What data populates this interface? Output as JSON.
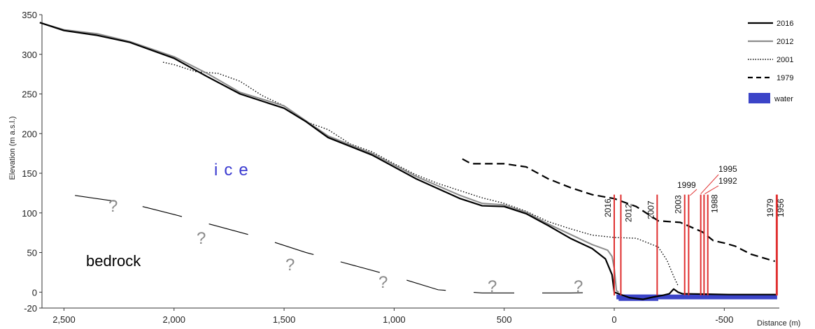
{
  "chart_data": {
    "type": "line",
    "title": "",
    "xlabel": "Distance (m)",
    "ylabel": "Elevation (m a.s.l.)",
    "xlim": [
      2600,
      -750
    ],
    "ylim": [
      -20,
      350
    ],
    "x_ticks": [
      {
        "value": 2500,
        "label": "2,500"
      },
      {
        "value": 2000,
        "label": "2,000"
      },
      {
        "value": 1500,
        "label": "1,500"
      },
      {
        "value": 1000,
        "label": "1,000"
      },
      {
        "value": 500,
        "label": "500"
      },
      {
        "value": 0,
        "label": "0"
      },
      {
        "value": -500,
        "label": "-500"
      }
    ],
    "y_ticks": [
      {
        "value": 350,
        "label": "350"
      },
      {
        "value": 300,
        "label": "300"
      },
      {
        "value": 250,
        "label": "250"
      },
      {
        "value": 200,
        "label": "200"
      },
      {
        "value": 150,
        "label": "150"
      },
      {
        "value": 100,
        "label": "100"
      },
      {
        "value": 50,
        "label": "50"
      },
      {
        "value": 0,
        "label": "0"
      },
      {
        "value": -20,
        "label": "-20"
      }
    ],
    "legend_position": "top-right",
    "legend": [
      {
        "label": "2016",
        "style": "solid",
        "color": "#000000"
      },
      {
        "label": "2012",
        "style": "solid",
        "color": "#8c8c8c"
      },
      {
        "label": "2001",
        "style": "dotted",
        "color": "#000000"
      },
      {
        "label": "1979",
        "style": "dashed",
        "color": "#000000"
      },
      {
        "label": "water",
        "style": "box",
        "color": "#3b44c8"
      }
    ],
    "series": [
      {
        "name": "2016",
        "style": "solid",
        "color": "#000000",
        "points": [
          [
            2610,
            340
          ],
          [
            2500,
            330
          ],
          [
            2350,
            324
          ],
          [
            2200,
            315
          ],
          [
            2000,
            295
          ],
          [
            1850,
            272
          ],
          [
            1700,
            250
          ],
          [
            1500,
            232
          ],
          [
            1400,
            215
          ],
          [
            1300,
            195
          ],
          [
            1100,
            173
          ],
          [
            900,
            143
          ],
          [
            700,
            118
          ],
          [
            600,
            109
          ],
          [
            500,
            108
          ],
          [
            400,
            99
          ],
          [
            300,
            84
          ],
          [
            200,
            68
          ],
          [
            100,
            55
          ],
          [
            40,
            42
          ],
          [
            10,
            22
          ],
          [
            0,
            0
          ],
          [
            -20,
            -2
          ],
          [
            -70,
            -7
          ],
          [
            -130,
            -9
          ],
          [
            -180,
            -6
          ],
          [
            -220,
            -4
          ],
          [
            -250,
            -2
          ],
          [
            -270,
            4
          ],
          [
            -290,
            0
          ],
          [
            -310,
            -2
          ],
          [
            -520,
            -3
          ],
          [
            -740,
            -3
          ]
        ]
      },
      {
        "name": "2012",
        "style": "solid",
        "color": "#8c8c8c",
        "points": [
          [
            2610,
            340
          ],
          [
            2500,
            331
          ],
          [
            2350,
            326
          ],
          [
            2200,
            316
          ],
          [
            2000,
            297
          ],
          [
            1850,
            276
          ],
          [
            1700,
            252
          ],
          [
            1500,
            235
          ],
          [
            1400,
            216
          ],
          [
            1300,
            197
          ],
          [
            1100,
            175
          ],
          [
            900,
            146
          ],
          [
            700,
            122
          ],
          [
            600,
            112
          ],
          [
            500,
            110
          ],
          [
            400,
            101
          ],
          [
            300,
            86
          ],
          [
            200,
            73
          ],
          [
            100,
            60
          ],
          [
            30,
            53
          ],
          [
            10,
            45
          ],
          [
            0,
            30
          ],
          [
            -10,
            2
          ],
          [
            -20,
            0
          ]
        ]
      },
      {
        "name": "2001",
        "style": "dotted",
        "color": "#000000",
        "points": [
          [
            2050,
            290
          ],
          [
            2000,
            287
          ],
          [
            1900,
            278
          ],
          [
            1800,
            276
          ],
          [
            1700,
            266
          ],
          [
            1600,
            248
          ],
          [
            1500,
            235
          ],
          [
            1400,
            215
          ],
          [
            1300,
            205
          ],
          [
            1200,
            187
          ],
          [
            1100,
            177
          ],
          [
            1000,
            162
          ],
          [
            900,
            148
          ],
          [
            800,
            137
          ],
          [
            700,
            128
          ],
          [
            600,
            119
          ],
          [
            500,
            112
          ],
          [
            400,
            102
          ],
          [
            300,
            89
          ],
          [
            200,
            80
          ],
          [
            100,
            72
          ],
          [
            0,
            69
          ],
          [
            -100,
            68
          ],
          [
            -200,
            57
          ],
          [
            -240,
            40
          ],
          [
            -270,
            20
          ],
          [
            -290,
            8
          ]
        ]
      },
      {
        "name": "1979",
        "style": "dashed",
        "color": "#000000",
        "points": [
          [
            690,
            168
          ],
          [
            650,
            162
          ],
          [
            500,
            162
          ],
          [
            400,
            158
          ],
          [
            300,
            143
          ],
          [
            200,
            132
          ],
          [
            100,
            123
          ],
          [
            0,
            118
          ],
          [
            -100,
            108
          ],
          [
            -200,
            90
          ],
          [
            -300,
            88
          ],
          [
            -400,
            76
          ],
          [
            -450,
            65
          ],
          [
            -500,
            62
          ],
          [
            -550,
            58
          ],
          [
            -620,
            48
          ],
          [
            -680,
            43
          ],
          [
            -730,
            39
          ]
        ]
      }
    ],
    "bedrock_profile": [
      [
        2450,
        122
      ],
      [
        2200,
        112
      ],
      [
        2000,
        98
      ],
      [
        1800,
        83
      ],
      [
        1600,
        68
      ],
      [
        1400,
        50
      ],
      [
        1200,
        35
      ],
      [
        1000,
        20
      ],
      [
        800,
        3
      ],
      [
        600,
        -1
      ],
      [
        400,
        -1
      ],
      [
        200,
        -1
      ],
      [
        30,
        0
      ]
    ],
    "water_range": [
      -10,
      -740
    ],
    "front_positions": [
      {
        "label": "2016",
        "x": 0
      },
      {
        "label": "2012",
        "x": -30
      },
      {
        "label": "2007",
        "x": -195
      },
      {
        "label": "2003",
        "x": -320
      },
      {
        "label": "1999",
        "x": -338
      },
      {
        "label": "1995",
        "x": -393
      },
      {
        "label": "1992",
        "x": -408
      },
      {
        "label": "1988",
        "x": -425
      },
      {
        "label": "1979",
        "x": -737
      },
      {
        "label": "1956",
        "x": -740
      }
    ],
    "annotations": [
      {
        "text": "ice",
        "type": "region-ice"
      },
      {
        "text": "bedrock",
        "type": "region-bedrock"
      },
      {
        "text": "?",
        "type": "uncertainty"
      }
    ]
  }
}
